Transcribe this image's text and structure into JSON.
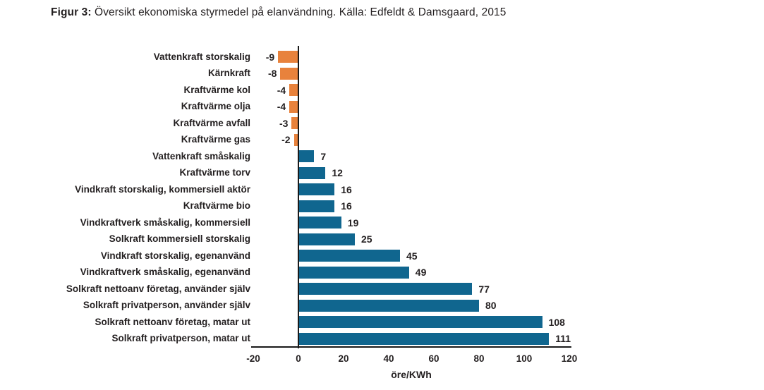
{
  "title": {
    "prefix": "Figur 3:",
    "text": " Översikt ekonomiska styrmedel på elanvändning. Källa: Edfeldt & Damsgaard, 2015"
  },
  "chart_data": {
    "type": "bar",
    "orientation": "horizontal",
    "title": "Figur 3: Översikt ekonomiska styrmedel på elanvändning. Källa: Edfeldt & Damsgaard, 2015",
    "categories": [
      "Vattenkraft storskalig",
      "Kärnkraft",
      "Kraftvärme kol",
      "Kraftvärme olja",
      "Kraftvärme avfall",
      "Kraftvärme gas",
      "Vattenkraft småskalig",
      "Kraftvärme torv",
      "Vindkraft storskalig, kommersiell aktör",
      "Kraftvärme bio",
      "Vindkraftverk småskalig, kommersiell",
      "Solkraft kommersiell storskalig",
      "Vindkraft storskalig, egenanvänd",
      "Vindkraftverk småskalig, egenanvänd",
      "Solkraft nettoanv företag, använder själv",
      "Solkraft privatperson, använder själv",
      "Solkraft nettoanv företag, matar ut",
      "Solkraft privatperson, matar ut"
    ],
    "values": [
      -9,
      -8,
      -4,
      -4,
      -3,
      -2,
      7,
      12,
      16,
      16,
      19,
      25,
      45,
      49,
      77,
      80,
      108,
      111
    ],
    "xlabel": "öre/KWh",
    "ylabel": "",
    "x_ticks": [
      -20,
      0,
      20,
      40,
      60,
      80,
      100,
      120
    ],
    "xlim": [
      -20,
      120
    ],
    "grid": false,
    "legend": null,
    "value_labels": true,
    "negative_color": "#E8823C",
    "positive_color": "#10668F",
    "axis_color": "#1a1a1a",
    "text_color": "#231f20"
  }
}
